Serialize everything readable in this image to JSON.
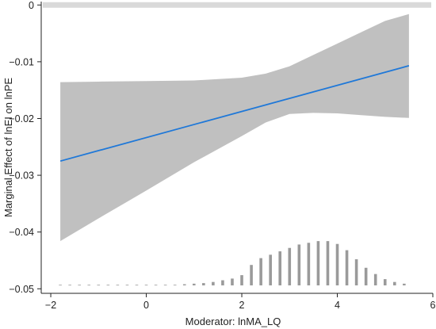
{
  "chart_data": {
    "type": "line",
    "title": "",
    "xlabel": "Moderator: lnMA_LQ",
    "ylabel": "Marginal Effect of lnEI on lnPE",
    "xlim": [
      -2.2,
      6.0
    ],
    "ylim": [
      -0.0508,
      0.0006
    ],
    "x_ticks": [
      -2,
      0,
      2,
      4,
      6
    ],
    "x_tick_labels": [
      "−2",
      "0",
      "2",
      "4",
      "6"
    ],
    "y_ticks": [
      0,
      -0.01,
      -0.02,
      -0.03,
      -0.04,
      -0.05
    ],
    "y_tick_labels": [
      "0",
      "−0.01",
      "−0.02",
      "−0.03",
      "−0.04",
      "−0.05"
    ],
    "grid": false,
    "legend": "none",
    "reference_line": {
      "y": 0,
      "color": "#d9d9d9"
    },
    "marginal_effect": {
      "color": "#1f78d8",
      "x": [
        -1.8,
        5.5
      ],
      "y": [
        -0.0275,
        -0.0107
      ]
    },
    "confidence_band": {
      "color": "#c0c0c0",
      "x": [
        -1.8,
        -1.0,
        0.0,
        1.0,
        2.0,
        2.5,
        3.0,
        3.5,
        4.0,
        4.5,
        5.0,
        5.5
      ],
      "upper": [
        -0.0136,
        -0.0135,
        -0.0134,
        -0.0133,
        -0.0128,
        -0.0121,
        -0.0108,
        -0.0088,
        -0.0068,
        -0.0048,
        -0.0028,
        -0.0016
      ],
      "lower": [
        -0.0416,
        -0.0376,
        -0.0327,
        -0.0277,
        -0.0231,
        -0.0207,
        -0.0192,
        -0.019,
        -0.0191,
        -0.0194,
        -0.0197,
        -0.0199
      ]
    },
    "histogram": {
      "color": "#9a9a9a",
      "baseline": -0.0494,
      "x": [
        -1.8,
        -1.6,
        -1.4,
        -1.2,
        -1.0,
        -0.8,
        -0.6,
        -0.4,
        -0.2,
        0.0,
        0.2,
        0.4,
        0.6,
        0.8,
        1.0,
        1.2,
        1.4,
        1.6,
        1.8,
        2.0,
        2.2,
        2.4,
        2.6,
        2.8,
        3.0,
        3.2,
        3.4,
        3.6,
        3.8,
        4.0,
        4.2,
        4.4,
        4.6,
        4.8,
        5.0,
        5.2,
        5.4
      ],
      "height": [
        0.0001,
        0.0001,
        0.0001,
        0.0001,
        0.0001,
        0.0001,
        0.0001,
        0.0001,
        0.0001,
        0.0001,
        0.0001,
        0.0001,
        0.0001,
        0.0002,
        0.0003,
        0.0004,
        0.0006,
        0.0009,
        0.0012,
        0.0018,
        0.0036,
        0.0048,
        0.0054,
        0.006,
        0.0066,
        0.0072,
        0.0075,
        0.0078,
        0.0078,
        0.0073,
        0.0062,
        0.0046,
        0.0031,
        0.002,
        0.0011,
        0.0006,
        0.0003
      ]
    }
  }
}
